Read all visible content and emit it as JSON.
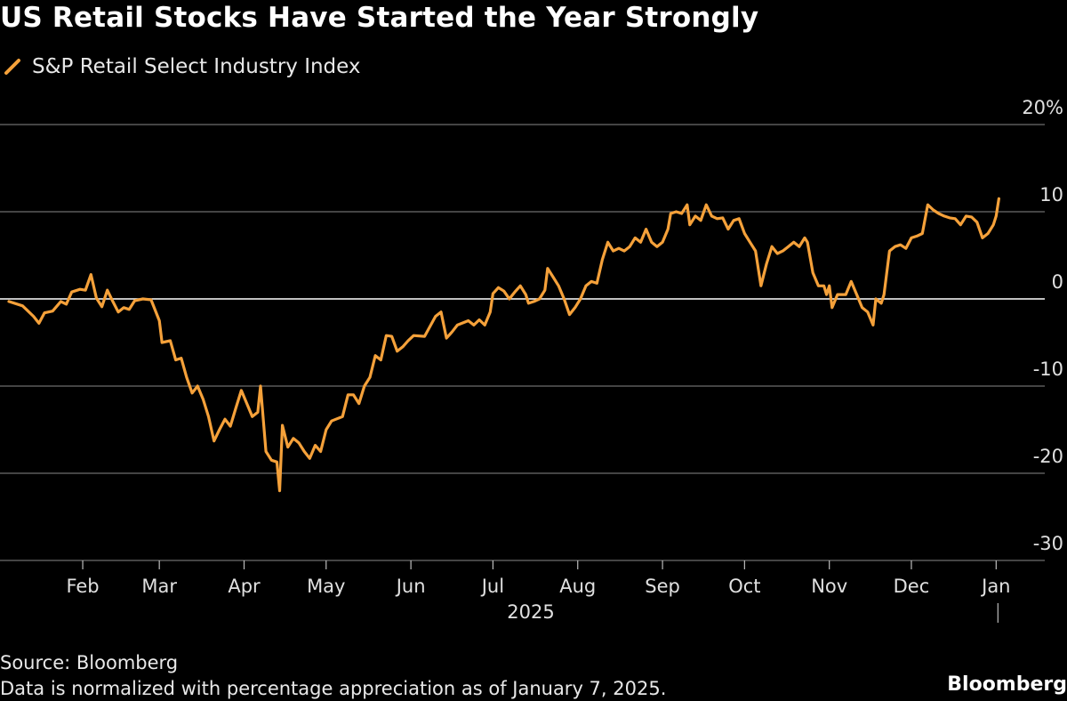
{
  "chart_data": {
    "type": "line",
    "title": "US Retail Stocks Have Started the Year Strongly",
    "series": [
      {
        "name": "S&P Retail Select Industry Index",
        "color": "#f5a13a",
        "points": [
          [
            0,
            -0.3
          ],
          [
            5,
            -0.8
          ],
          [
            9,
            -2
          ],
          [
            11,
            -2.8
          ],
          [
            13,
            -1.6
          ],
          [
            16,
            -1.4
          ],
          [
            19,
            -0.3
          ],
          [
            21,
            -0.6
          ],
          [
            23,
            0.8
          ],
          [
            26,
            1.1
          ],
          [
            28,
            1.0
          ],
          [
            30,
            2.8
          ],
          [
            32,
            0.1
          ],
          [
            34,
            -0.9
          ],
          [
            36,
            1.0
          ],
          [
            38,
            -0.3
          ],
          [
            40,
            -1.5
          ],
          [
            42,
            -1.0
          ],
          [
            44,
            -1.2
          ],
          [
            46,
            -0.2
          ],
          [
            49,
            0
          ],
          [
            52,
            -0.1
          ],
          [
            55,
            -2.5
          ],
          [
            56,
            -5
          ],
          [
            59,
            -4.8
          ],
          [
            61,
            -7
          ],
          [
            63,
            -6.8
          ],
          [
            65,
            -9
          ],
          [
            67,
            -10.8
          ],
          [
            69,
            -10
          ],
          [
            71,
            -11.5
          ],
          [
            73,
            -13.5
          ],
          [
            75,
            -16.3
          ],
          [
            77,
            -15
          ],
          [
            79,
            -13.8
          ],
          [
            81,
            -14.6
          ],
          [
            83,
            -12.5
          ],
          [
            85,
            -10.5
          ],
          [
            87,
            -12
          ],
          [
            89,
            -13.5
          ],
          [
            91,
            -13
          ],
          [
            92,
            -10
          ],
          [
            94,
            -17.5
          ],
          [
            96,
            -18.5
          ],
          [
            98,
            -18.7
          ],
          [
            99,
            -22
          ],
          [
            100,
            -14.5
          ],
          [
            102,
            -17
          ],
          [
            104,
            -16
          ],
          [
            106,
            -16.5
          ],
          [
            108,
            -17.5
          ],
          [
            110,
            -18.3
          ],
          [
            112,
            -16.8
          ],
          [
            114,
            -17.5
          ],
          [
            116,
            -15
          ],
          [
            118,
            -14
          ],
          [
            122,
            -13.5
          ],
          [
            124,
            -11
          ],
          [
            126,
            -11
          ],
          [
            128,
            -12
          ],
          [
            130,
            -10
          ],
          [
            132,
            -9
          ],
          [
            134,
            -6.5
          ],
          [
            136,
            -7
          ],
          [
            138,
            -4.2
          ],
          [
            140,
            -4.3
          ],
          [
            142,
            -6
          ],
          [
            144,
            -5.5
          ],
          [
            146,
            -4.8
          ],
          [
            148,
            -4.2
          ],
          [
            152,
            -4.3
          ],
          [
            156,
            -2
          ],
          [
            158,
            -1.5
          ],
          [
            160,
            -4.5
          ],
          [
            162,
            -3.8
          ],
          [
            164,
            -3
          ],
          [
            168,
            -2.5
          ],
          [
            170,
            -3
          ],
          [
            172,
            -2.4
          ],
          [
            174,
            -3
          ],
          [
            176,
            -1.5
          ],
          [
            177,
            0.6
          ],
          [
            179,
            1.3
          ],
          [
            181,
            0.9
          ],
          [
            183,
            0
          ],
          [
            185,
            0.8
          ],
          [
            187,
            1.5
          ],
          [
            189,
            0.5
          ],
          [
            190,
            -0.5
          ],
          [
            192,
            -0.3
          ],
          [
            194,
            0
          ],
          [
            196,
            1.0
          ],
          [
            197,
            3.5
          ],
          [
            199,
            2.5
          ],
          [
            201,
            1.5
          ],
          [
            203,
            0
          ],
          [
            205,
            -1.8
          ],
          [
            207,
            -1.0
          ],
          [
            209,
            0
          ],
          [
            211,
            1.5
          ],
          [
            213,
            2.0
          ],
          [
            215,
            1.8
          ],
          [
            217,
            4.5
          ],
          [
            219,
            6.5
          ],
          [
            221,
            5.5
          ],
          [
            223,
            5.8
          ],
          [
            225,
            5.5
          ],
          [
            227,
            6.0
          ],
          [
            229,
            7.0
          ],
          [
            231,
            6.5
          ],
          [
            233,
            8.0
          ],
          [
            235,
            6.5
          ],
          [
            237,
            6.0
          ],
          [
            239,
            6.5
          ],
          [
            241,
            8.0
          ],
          [
            242,
            9.8
          ],
          [
            244,
            10.0
          ],
          [
            246,
            9.8
          ],
          [
            248,
            10.8
          ],
          [
            249,
            8.5
          ],
          [
            251,
            9.5
          ],
          [
            253,
            9.0
          ],
          [
            255,
            10.8
          ],
          [
            257,
            9.5
          ],
          [
            259,
            9.2
          ],
          [
            261,
            9.3
          ],
          [
            263,
            8.0
          ],
          [
            265,
            9.0
          ],
          [
            267,
            9.2
          ],
          [
            269,
            7.5
          ],
          [
            271,
            6.5
          ],
          [
            273,
            5.5
          ],
          [
            275,
            1.5
          ],
          [
            277,
            4.0
          ],
          [
            279,
            6.0
          ],
          [
            281,
            5.2
          ],
          [
            283,
            5.5
          ],
          [
            285,
            6.0
          ],
          [
            287,
            6.5
          ],
          [
            289,
            6.0
          ],
          [
            291,
            7.0
          ],
          [
            292,
            6.5
          ],
          [
            294,
            3.0
          ],
          [
            296,
            1.5
          ],
          [
            298,
            1.5
          ],
          [
            299,
            0.5
          ],
          [
            300,
            1.5
          ],
          [
            301,
            -1.0
          ],
          [
            303,
            0.5
          ],
          [
            306,
            0.5
          ],
          [
            308,
            2.0
          ],
          [
            310,
            0.5
          ],
          [
            312,
            -1.0
          ],
          [
            314,
            -1.5
          ],
          [
            316,
            -3.0
          ],
          [
            317,
            0
          ],
          [
            319,
            -0.5
          ],
          [
            320,
            0.5
          ],
          [
            322,
            5.5
          ],
          [
            324,
            6.0
          ],
          [
            326,
            6.2
          ],
          [
            328,
            5.8
          ],
          [
            330,
            7.0
          ],
          [
            332,
            7.2
          ],
          [
            334,
            7.5
          ],
          [
            336,
            10.8
          ],
          [
            338,
            10.2
          ],
          [
            340,
            9.8
          ],
          [
            342,
            9.5
          ],
          [
            344,
            9.3
          ],
          [
            346,
            9.2
          ],
          [
            348,
            8.5
          ],
          [
            350,
            9.5
          ],
          [
            352,
            9.4
          ],
          [
            354,
            8.8
          ],
          [
            356,
            7.0
          ],
          [
            358,
            7.5
          ],
          [
            360,
            8.5
          ],
          [
            361,
            9.5
          ],
          [
            362,
            11.5
          ]
        ]
      }
    ],
    "x_range": [
      0,
      370
    ],
    "ylim": [
      -30,
      20
    ],
    "y_ticks": [
      20,
      10,
      0,
      -10,
      -20,
      -30
    ],
    "y_tick_labels": [
      "20%",
      "10",
      "0",
      "-10",
      "-20",
      "-30"
    ],
    "x_ticks": [
      {
        "label": "Feb",
        "day": 27
      },
      {
        "label": "Mar",
        "day": 55
      },
      {
        "label": "Apr",
        "day": 86
      },
      {
        "label": "May",
        "day": 116
      },
      {
        "label": "Jun",
        "day": 147
      },
      {
        "label": "Jul",
        "day": 177
      },
      {
        "label": "Aug",
        "day": 208
      },
      {
        "label": "Sep",
        "day": 239
      },
      {
        "label": "Oct",
        "day": 269
      },
      {
        "label": "Nov",
        "day": 300
      },
      {
        "label": "Dec",
        "day": 330
      },
      {
        "label": "Jan",
        "day": 361
      }
    ],
    "year_label": "2025",
    "year_divider_day": 361,
    "grid": true,
    "legend": "top-left"
  },
  "footer": {
    "source": "Source: Bloomberg",
    "note": "Data is normalized with percentage appreciation as of January 7, 2025.",
    "brand": "Bloomberg"
  }
}
